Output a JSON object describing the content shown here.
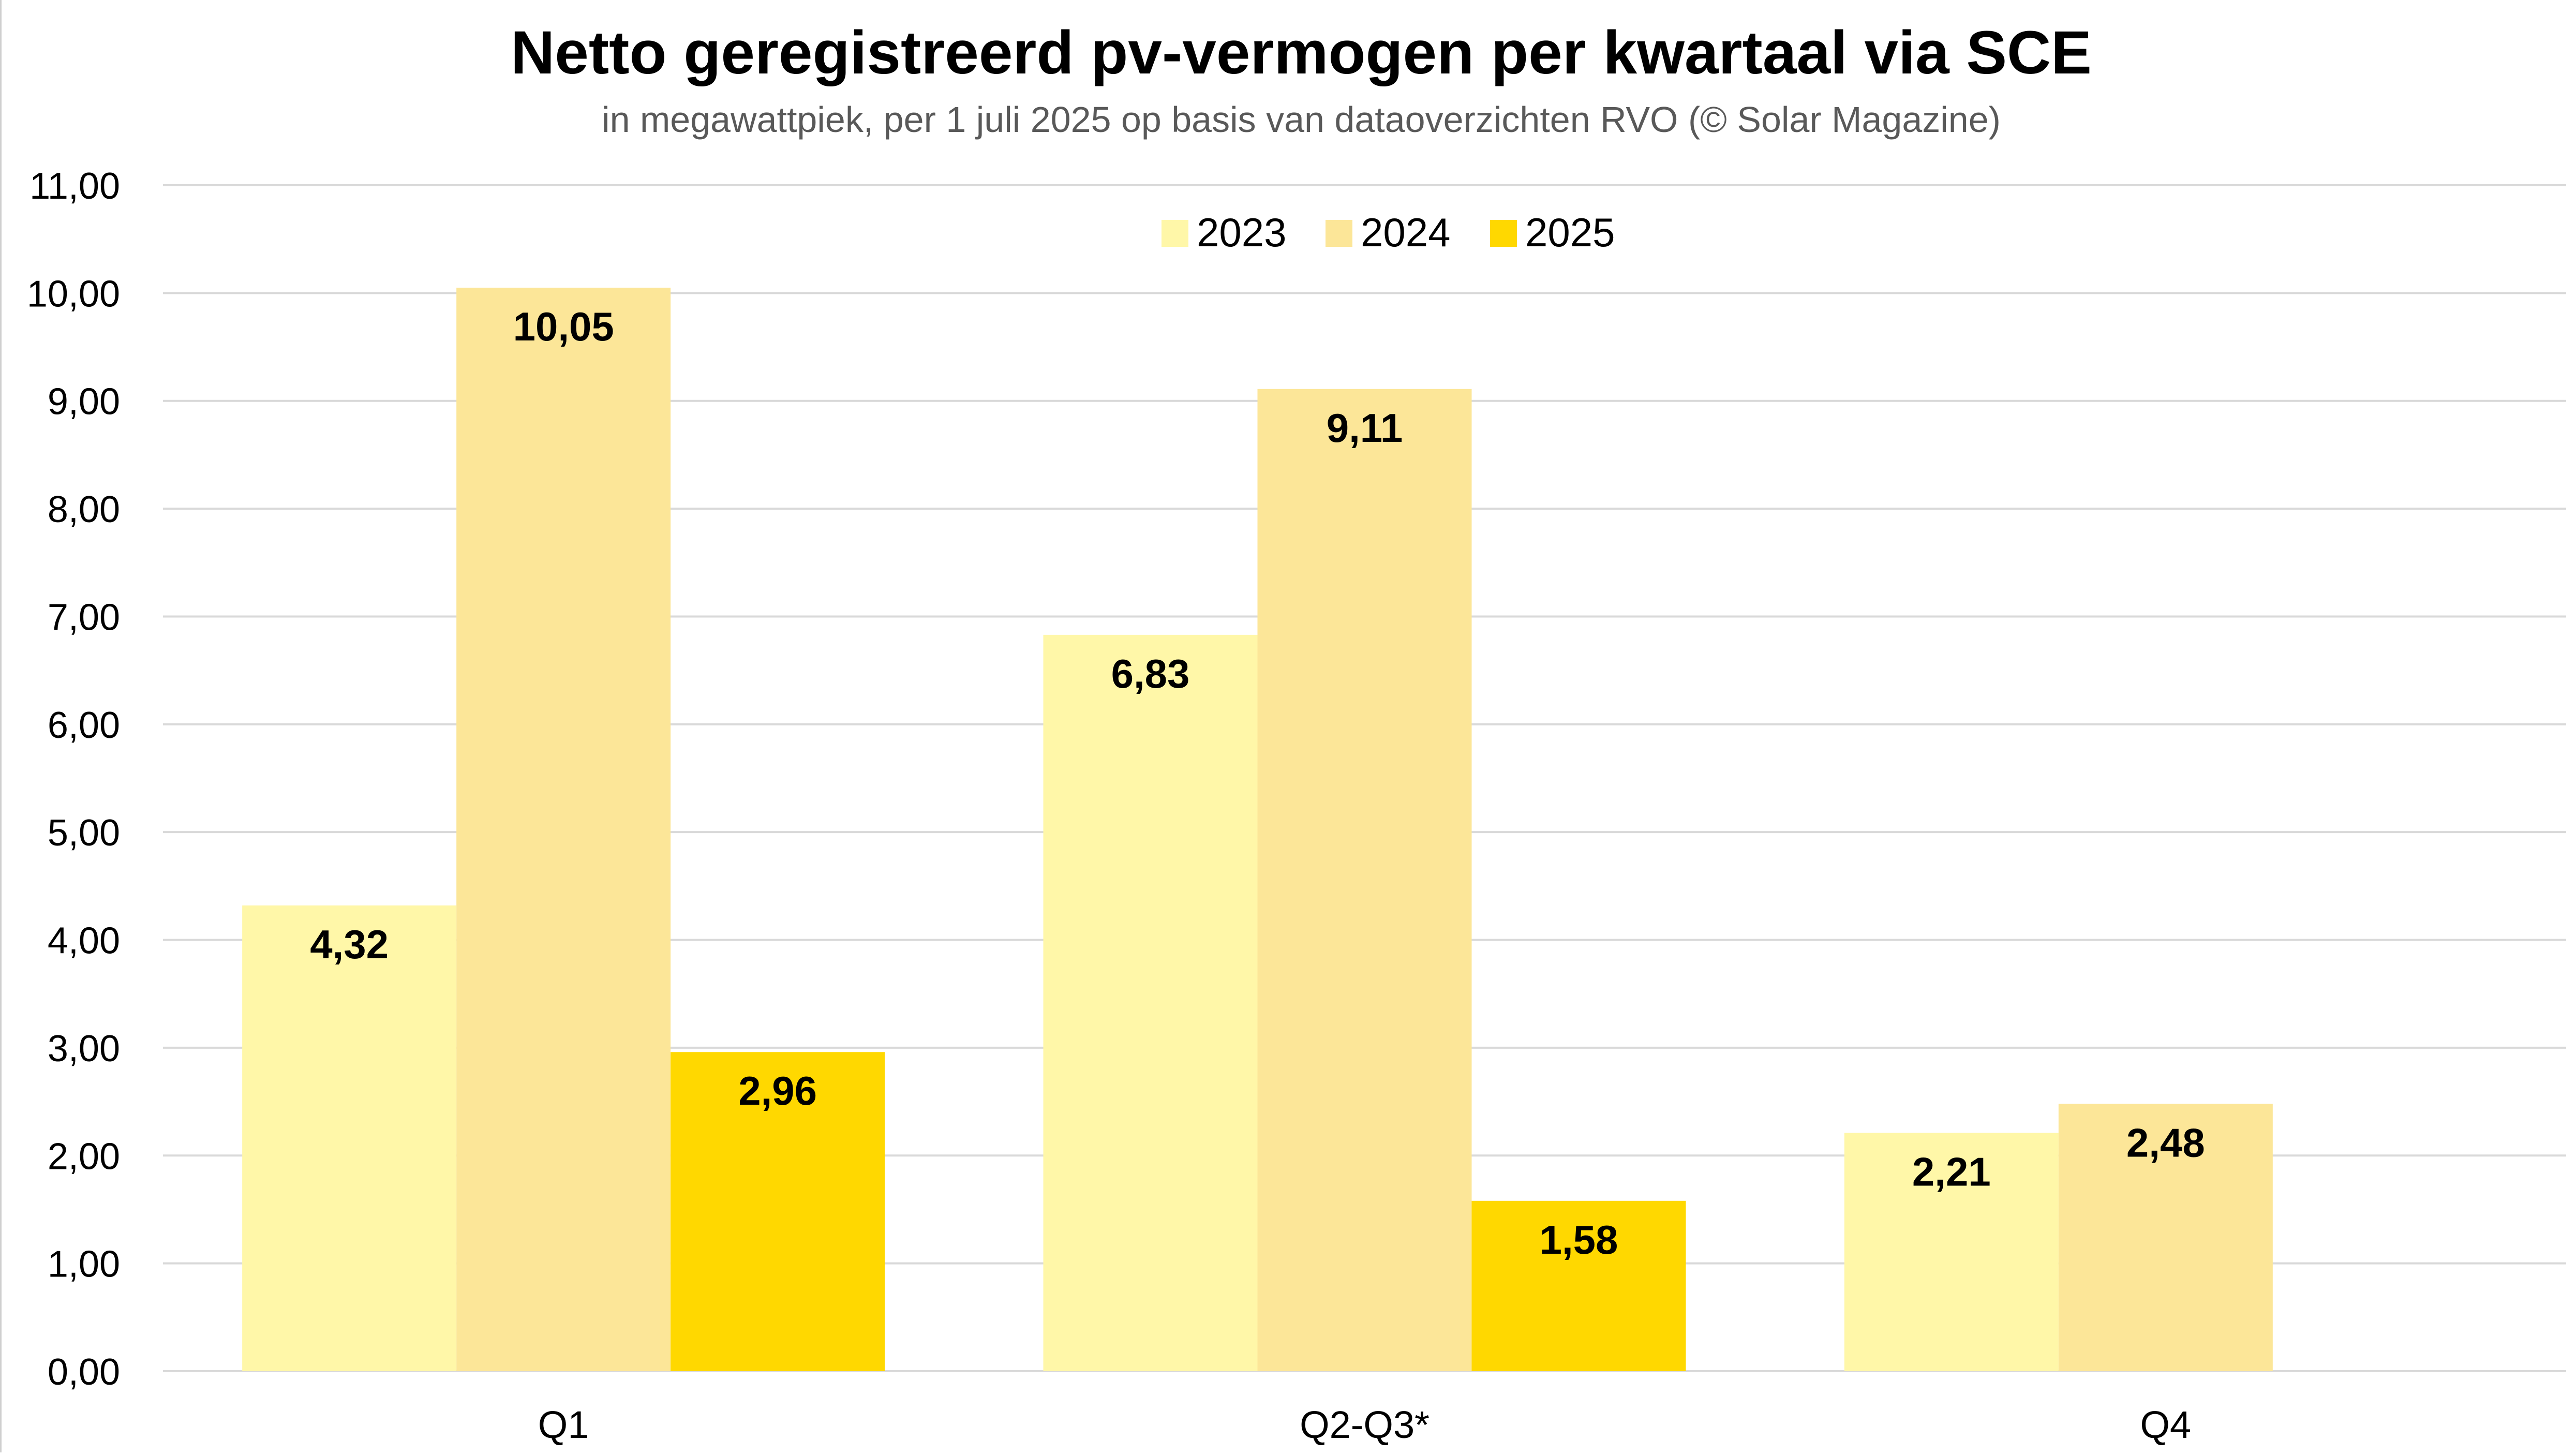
{
  "chart_data": {
    "type": "bar",
    "title": "Netto geregistreerd pv-vermogen per kwartaal via SCE",
    "subtitle": "in megawattpiek, per 1 juli 2025 op basis van dataoverzichten RVO (© Solar Magazine)",
    "xlabel": "",
    "ylabel": "",
    "categories": [
      "Q1",
      "Q2-Q3*",
      "Q4"
    ],
    "series": [
      {
        "name": "2023",
        "color": "#FFF7A8",
        "values": [
          4.32,
          6.83,
          2.21
        ],
        "labels": [
          "4,32",
          "6,83",
          "2,21"
        ]
      },
      {
        "name": "2024",
        "color": "#FCE698",
        "values": [
          10.05,
          9.11,
          2.48
        ],
        "labels": [
          "10,05",
          "9,11",
          "2,48"
        ]
      },
      {
        "name": "2025",
        "color": "#FFD800",
        "values": [
          2.96,
          1.58,
          null
        ],
        "labels": [
          "2,96",
          "1,58",
          ""
        ]
      }
    ],
    "ylim": [
      0,
      11
    ],
    "yticks": [
      0,
      1,
      2,
      3,
      4,
      5,
      6,
      7,
      8,
      9,
      10,
      11
    ],
    "ytick_labels": [
      "0,00",
      "1,00",
      "2,00",
      "3,00",
      "4,00",
      "5,00",
      "6,00",
      "7,00",
      "8,00",
      "9,00",
      "10,00",
      "11,00"
    ],
    "grid": true,
    "legend_position": "top-center",
    "colors": {
      "gridline": "#D9D9D9",
      "text": "#000000",
      "subtitle": "#595959"
    }
  }
}
